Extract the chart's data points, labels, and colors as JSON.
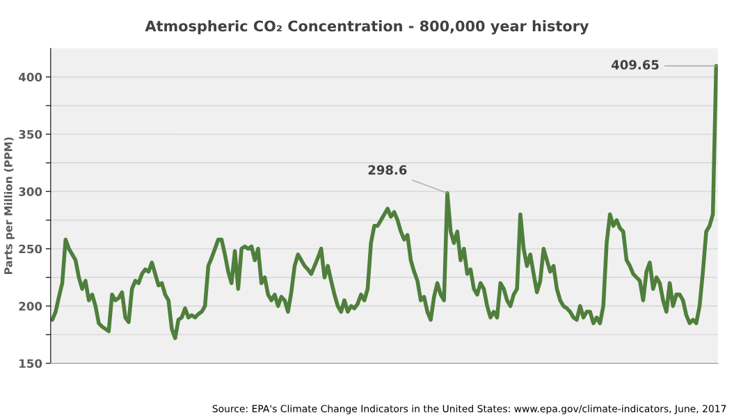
{
  "chart_data": {
    "type": "line",
    "title": "Atmospheric CO₂ Concentration - 800,000 year history",
    "ylabel": "Parts per Million (PPM)",
    "categories": [
      null,
      null,
      null,
      null,
      null,
      null,
      null,
      null,
      null,
      null,
      null,
      null,
      null,
      null,
      null,
      null,
      null,
      null,
      null,
      null,
      null,
      null,
      null,
      null,
      null,
      null,
      null,
      null,
      null,
      null,
      null,
      null,
      null,
      null,
      null,
      null,
      null,
      null,
      null,
      null,
      null,
      null,
      null,
      null,
      null,
      null,
      null,
      null,
      null,
      null,
      null,
      null,
      null,
      null,
      null,
      null,
      null,
      null,
      null,
      null,
      null,
      null,
      null,
      null,
      null,
      null,
      null,
      null,
      null,
      null,
      null,
      null,
      null,
      null,
      null,
      null,
      null,
      null,
      null,
      null,
      null,
      null,
      null,
      null,
      null,
      null,
      null,
      null,
      null,
      null,
      null,
      null,
      null,
      null,
      null,
      null,
      null,
      null,
      null,
      null,
      null,
      null,
      null,
      null,
      null,
      null,
      null,
      null,
      null,
      null,
      null,
      null,
      null,
      null,
      null,
      null,
      null,
      null,
      null,
      null,
      null,
      null,
      null,
      null,
      null,
      null,
      null,
      null,
      null,
      null,
      null,
      null,
      null,
      null,
      null,
      null,
      null,
      null,
      null,
      null,
      null,
      null,
      null,
      null,
      null,
      null,
      null,
      null,
      null,
      null,
      null,
      null,
      null,
      null,
      null,
      null,
      null,
      null,
      null,
      null,
      null,
      null,
      null,
      null,
      null,
      null,
      null,
      null,
      null,
      null,
      null,
      null,
      null,
      null,
      null,
      null,
      null,
      null,
      null,
      null,
      null,
      null,
      null,
      null,
      null,
      null,
      null,
      null,
      null,
      null,
      null,
      null,
      null,
      null,
      null,
      null,
      null,
      null,
      null,
      null,
      null
    ],
    "series": [
      {
        "color": "#4f7f3c",
        "values": [
          188,
          195,
          208,
          220,
          258,
          250,
          245,
          240,
          225,
          215,
          222,
          205,
          210,
          200,
          185,
          182,
          180,
          178,
          210,
          205,
          207,
          212,
          190,
          186,
          215,
          222,
          220,
          228,
          232,
          230,
          238,
          228,
          218,
          220,
          210,
          205,
          180,
          172,
          188,
          190,
          198,
          190,
          192,
          190,
          193,
          195,
          200,
          235,
          242,
          250,
          258,
          258,
          245,
          230,
          220,
          248,
          215,
          250,
          252,
          250,
          252,
          240,
          250,
          220,
          225,
          210,
          205,
          210,
          200,
          208,
          205,
          195,
          212,
          235,
          245,
          240,
          235,
          232,
          228,
          235,
          242,
          250,
          225,
          235,
          222,
          210,
          200,
          195,
          205,
          195,
          200,
          198,
          202,
          210,
          205,
          215,
          255,
          270,
          270,
          275,
          280,
          285,
          278,
          282,
          275,
          265,
          258,
          262,
          240,
          230,
          222,
          205,
          208,
          195,
          188,
          208,
          220,
          210,
          205,
          298.6,
          265,
          255,
          265,
          240,
          250,
          228,
          232,
          215,
          210,
          220,
          215,
          200,
          190,
          195,
          190,
          220,
          215,
          205,
          200,
          210,
          215,
          280,
          250,
          235,
          245,
          228,
          212,
          222,
          250,
          240,
          230,
          235,
          215,
          205,
          200,
          198,
          195,
          190,
          188,
          200,
          190,
          195,
          195,
          185,
          190,
          185,
          200,
          255,
          280,
          270,
          275,
          268,
          265,
          240,
          235,
          228,
          225,
          222,
          205,
          230,
          238,
          215,
          225,
          220,
          205,
          195,
          220,
          200,
          210,
          210,
          205,
          192,
          185,
          188,
          185,
          200,
          230,
          265,
          270,
          280,
          409.65
        ]
      }
    ],
    "ylim": [
      150,
      425
    ],
    "yticks": [
      150,
      {
        "value": 175,
        "label": null
      },
      200,
      {
        "value": 225,
        "label": null
      },
      250,
      {
        "value": 275,
        "label": null
      },
      300,
      {
        "value": 325,
        "label": null
      },
      350,
      {
        "value": 375,
        "label": null
      },
      400
    ],
    "grid": "y",
    "tick_labels": "y",
    "annotations": [
      "298.6",
      "409.65",
      "Source: EPA's Climate Change Indicators in the United States: www.epa.gov/climate-indicators, June, 2017"
    ]
  }
}
